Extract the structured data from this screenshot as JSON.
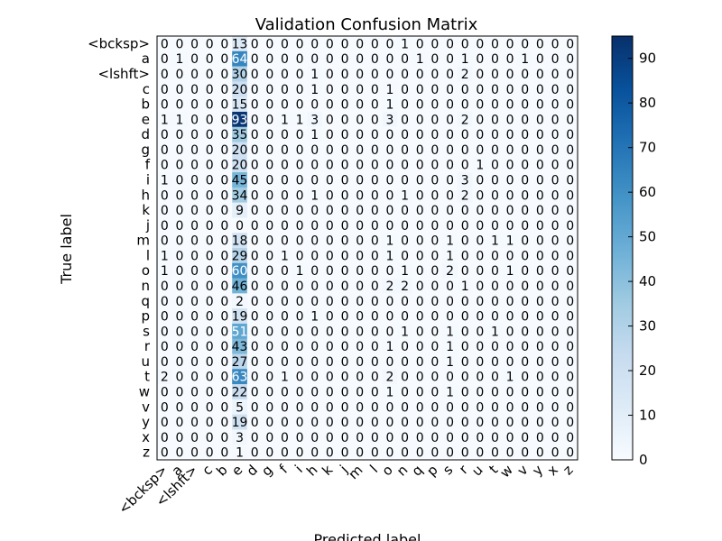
{
  "chart_data": {
    "type": "heatmap",
    "title": "Validation Confusion Matrix",
    "xlabel": "Predicted label",
    "ylabel": "True label",
    "row_labels": [
      "<bcksp>",
      "a",
      "<lshft>",
      "c",
      "b",
      "e",
      "d",
      "g",
      "f",
      "i",
      "h",
      "k",
      "j",
      "m",
      "l",
      "o",
      "n",
      "q",
      "p",
      "s",
      "r",
      "u",
      "t",
      "w",
      "v",
      "y",
      "x",
      "z"
    ],
    "col_labels": [
      "<bcksp>",
      "a",
      "<lshft>",
      "c",
      "b",
      "e",
      "d",
      "g",
      "f",
      "i",
      "h",
      "k",
      "j",
      "m",
      "l",
      "o",
      "n",
      "q",
      "p",
      "s",
      "r",
      "u",
      "t",
      "w",
      "v",
      "y",
      "x",
      "z"
    ],
    "matrix": [
      [
        0,
        0,
        0,
        0,
        0,
        13,
        0,
        0,
        0,
        0,
        0,
        0,
        0,
        0,
        0,
        0,
        1,
        0,
        0,
        0,
        0,
        0,
        0,
        0,
        0,
        0,
        0,
        0
      ],
      [
        0,
        1,
        0,
        0,
        0,
        64,
        0,
        0,
        0,
        0,
        0,
        0,
        0,
        0,
        0,
        0,
        0,
        1,
        0,
        0,
        1,
        0,
        0,
        0,
        1,
        0,
        0,
        0
      ],
      [
        0,
        0,
        0,
        0,
        0,
        30,
        0,
        0,
        0,
        0,
        1,
        0,
        0,
        0,
        0,
        0,
        0,
        0,
        0,
        0,
        2,
        0,
        0,
        0,
        0,
        0,
        0,
        0
      ],
      [
        0,
        0,
        0,
        0,
        0,
        20,
        0,
        0,
        0,
        0,
        1,
        0,
        0,
        0,
        0,
        1,
        0,
        0,
        0,
        0,
        0,
        0,
        0,
        0,
        0,
        0,
        0,
        0
      ],
      [
        0,
        0,
        0,
        0,
        0,
        15,
        0,
        0,
        0,
        0,
        0,
        0,
        0,
        0,
        0,
        1,
        0,
        0,
        0,
        0,
        0,
        0,
        0,
        0,
        0,
        0,
        0,
        0
      ],
      [
        1,
        1,
        0,
        0,
        0,
        93,
        0,
        0,
        1,
        1,
        3,
        0,
        0,
        0,
        0,
        3,
        0,
        0,
        0,
        0,
        2,
        0,
        0,
        0,
        0,
        0,
        0,
        0
      ],
      [
        0,
        0,
        0,
        0,
        0,
        35,
        0,
        0,
        0,
        0,
        1,
        0,
        0,
        0,
        0,
        0,
        0,
        0,
        0,
        0,
        0,
        0,
        0,
        0,
        0,
        0,
        0,
        0
      ],
      [
        0,
        0,
        0,
        0,
        0,
        20,
        0,
        0,
        0,
        0,
        0,
        0,
        0,
        0,
        0,
        0,
        0,
        0,
        0,
        0,
        0,
        0,
        0,
        0,
        0,
        0,
        0,
        0
      ],
      [
        0,
        0,
        0,
        0,
        0,
        20,
        0,
        0,
        0,
        0,
        0,
        0,
        0,
        0,
        0,
        0,
        0,
        0,
        0,
        0,
        0,
        1,
        0,
        0,
        0,
        0,
        0,
        0
      ],
      [
        1,
        0,
        0,
        0,
        0,
        45,
        0,
        0,
        0,
        0,
        0,
        0,
        0,
        0,
        0,
        0,
        0,
        0,
        0,
        0,
        3,
        0,
        0,
        0,
        0,
        0,
        0,
        0
      ],
      [
        0,
        0,
        0,
        0,
        0,
        34,
        0,
        0,
        0,
        0,
        1,
        0,
        0,
        0,
        0,
        0,
        1,
        0,
        0,
        0,
        2,
        0,
        0,
        0,
        0,
        0,
        0,
        0
      ],
      [
        0,
        0,
        0,
        0,
        0,
        9,
        0,
        0,
        0,
        0,
        0,
        0,
        0,
        0,
        0,
        0,
        0,
        0,
        0,
        0,
        0,
        0,
        0,
        0,
        0,
        0,
        0,
        0
      ],
      [
        0,
        0,
        0,
        0,
        0,
        0,
        0,
        0,
        0,
        0,
        0,
        0,
        0,
        0,
        0,
        0,
        0,
        0,
        0,
        0,
        0,
        0,
        0,
        0,
        0,
        0,
        0,
        0
      ],
      [
        0,
        0,
        0,
        0,
        0,
        18,
        0,
        0,
        0,
        0,
        0,
        0,
        0,
        0,
        0,
        1,
        0,
        0,
        0,
        1,
        0,
        0,
        1,
        1,
        0,
        0,
        0,
        0
      ],
      [
        1,
        0,
        0,
        0,
        0,
        29,
        0,
        0,
        1,
        0,
        0,
        0,
        0,
        0,
        0,
        1,
        0,
        0,
        0,
        1,
        0,
        0,
        0,
        0,
        0,
        0,
        0,
        0
      ],
      [
        1,
        0,
        0,
        0,
        0,
        60,
        0,
        0,
        0,
        1,
        0,
        0,
        0,
        0,
        0,
        0,
        1,
        0,
        0,
        2,
        0,
        0,
        0,
        1,
        0,
        0,
        0,
        0
      ],
      [
        0,
        0,
        0,
        0,
        0,
        46,
        0,
        0,
        0,
        0,
        0,
        0,
        0,
        0,
        0,
        2,
        2,
        0,
        0,
        0,
        1,
        0,
        0,
        0,
        0,
        0,
        0,
        0
      ],
      [
        0,
        0,
        0,
        0,
        0,
        2,
        0,
        0,
        0,
        0,
        0,
        0,
        0,
        0,
        0,
        0,
        0,
        0,
        0,
        0,
        0,
        0,
        0,
        0,
        0,
        0,
        0,
        0
      ],
      [
        0,
        0,
        0,
        0,
        0,
        19,
        0,
        0,
        0,
        0,
        1,
        0,
        0,
        0,
        0,
        0,
        0,
        0,
        0,
        0,
        0,
        0,
        0,
        0,
        0,
        0,
        0,
        0
      ],
      [
        0,
        0,
        0,
        0,
        0,
        51,
        0,
        0,
        0,
        0,
        0,
        0,
        0,
        0,
        0,
        0,
        1,
        0,
        0,
        1,
        0,
        0,
        1,
        0,
        0,
        0,
        0,
        0
      ],
      [
        0,
        0,
        0,
        0,
        0,
        43,
        0,
        0,
        0,
        0,
        0,
        0,
        0,
        0,
        0,
        1,
        0,
        0,
        0,
        1,
        0,
        0,
        0,
        0,
        0,
        0,
        0,
        0
      ],
      [
        0,
        0,
        0,
        0,
        0,
        27,
        0,
        0,
        0,
        0,
        0,
        0,
        0,
        0,
        0,
        0,
        0,
        0,
        0,
        1,
        0,
        0,
        0,
        0,
        0,
        0,
        0,
        0
      ],
      [
        2,
        0,
        0,
        0,
        0,
        63,
        0,
        0,
        1,
        0,
        0,
        0,
        0,
        0,
        0,
        2,
        0,
        0,
        0,
        0,
        0,
        0,
        0,
        1,
        0,
        0,
        0,
        0
      ],
      [
        0,
        0,
        0,
        0,
        0,
        22,
        0,
        0,
        0,
        0,
        0,
        0,
        0,
        0,
        0,
        1,
        0,
        0,
        0,
        1,
        0,
        0,
        0,
        0,
        0,
        0,
        0,
        0
      ],
      [
        0,
        0,
        0,
        0,
        0,
        5,
        0,
        0,
        0,
        0,
        0,
        0,
        0,
        0,
        0,
        0,
        0,
        0,
        0,
        0,
        0,
        0,
        0,
        0,
        0,
        0,
        0,
        0
      ],
      [
        0,
        0,
        0,
        0,
        0,
        19,
        0,
        0,
        0,
        0,
        0,
        0,
        0,
        0,
        0,
        0,
        0,
        0,
        0,
        0,
        0,
        0,
        0,
        0,
        0,
        0,
        0,
        0
      ],
      [
        0,
        0,
        0,
        0,
        0,
        3,
        0,
        0,
        0,
        0,
        0,
        0,
        0,
        0,
        0,
        0,
        0,
        0,
        0,
        0,
        0,
        0,
        0,
        0,
        0,
        0,
        0,
        0
      ],
      [
        0,
        0,
        0,
        0,
        0,
        1,
        0,
        0,
        0,
        0,
        0,
        0,
        0,
        0,
        0,
        0,
        0,
        0,
        0,
        0,
        0,
        0,
        0,
        0,
        0,
        0,
        0,
        0
      ]
    ],
    "colorbar": {
      "colormap": "Blues",
      "range": [
        0,
        95
      ],
      "ticks": [
        0,
        10,
        20,
        30,
        40,
        50,
        60,
        70,
        80,
        90
      ]
    },
    "grid": false,
    "legend": "colorbar-right"
  }
}
